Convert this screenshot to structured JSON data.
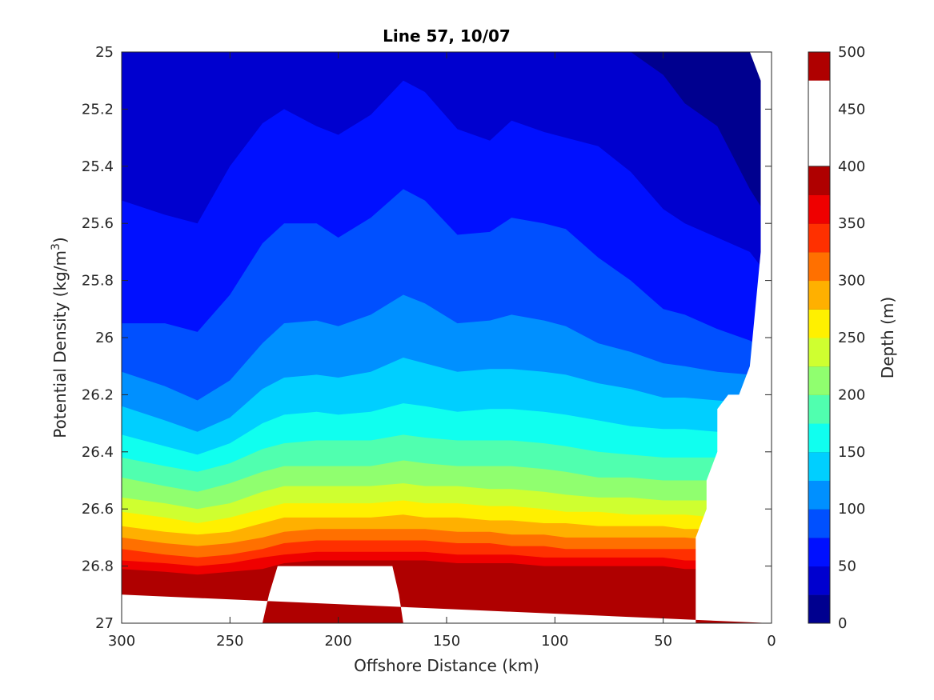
{
  "chart_data": {
    "type": "contour",
    "title": "Line 57, 10/07",
    "xlabel": "Offshore Distance (km)",
    "ylabel_main": "Potential Density (kg/m",
    "ylabel_sup": "3",
    "ylabel_close": ")",
    "colorbar_label": "Depth (m)",
    "xlim": [
      300,
      0
    ],
    "ylim": [
      27,
      25
    ],
    "x_ticks": [
      300,
      250,
      200,
      150,
      100,
      50,
      0
    ],
    "x_tick_labels": [
      "300",
      "250",
      "200",
      "150",
      "100",
      "50",
      "0"
    ],
    "y_ticks": [
      25,
      25.2,
      25.4,
      25.6,
      25.8,
      26,
      26.2,
      26.4,
      26.6,
      26.8,
      27
    ],
    "y_tick_labels": [
      "25",
      "25.2",
      "25.4",
      "25.6",
      "25.8",
      "26",
      "26.2",
      "26.4",
      "26.6",
      "26.8",
      "27"
    ],
    "colorbar_range": [
      0,
      500
    ],
    "colorbar_ticks": [
      0,
      50,
      100,
      150,
      200,
      250,
      300,
      350,
      400,
      450,
      500
    ],
    "colorbar_tick_labels": [
      "0",
      "50",
      "100",
      "150",
      "200",
      "250",
      "300",
      "350",
      "400",
      "450",
      "500"
    ],
    "contour_interval": 25,
    "colormap": [
      "#00008f",
      "#0000cf",
      "#0010ff",
      "#0050ff",
      "#0090ff",
      "#00cfff",
      "#10ffef",
      "#50ffaf",
      "#90ff6f",
      "#cfff30",
      "#fff000",
      "#ffb000",
      "#ff7000",
      "#ff3000",
      "#ef0000",
      "#af0000"
    ],
    "isolines": [
      {
        "depth": 25,
        "x": [
          300,
          280,
          265,
          250,
          235,
          225,
          210,
          200,
          185,
          170,
          160,
          145,
          130,
          120,
          105,
          95,
          80,
          65,
          50,
          40,
          25,
          10,
          0
        ],
        "y": [
          25.0,
          25.0,
          25.0,
          25.0,
          25.0,
          25.0,
          25.0,
          25.0,
          25.0,
          25.0,
          25.0,
          25.0,
          25.0,
          25.0,
          25.0,
          25.0,
          25.0,
          25.0,
          25.08,
          25.18,
          25.26,
          25.48,
          25.6
        ]
      },
      {
        "depth": 50,
        "x": [
          300,
          280,
          265,
          250,
          235,
          225,
          210,
          200,
          185,
          170,
          160,
          145,
          130,
          120,
          105,
          95,
          80,
          65,
          50,
          40,
          25,
          10,
          0
        ],
        "y": [
          25.52,
          25.57,
          25.6,
          25.4,
          25.25,
          25.2,
          25.26,
          25.29,
          25.22,
          25.1,
          25.14,
          25.27,
          25.31,
          25.24,
          25.28,
          25.3,
          25.33,
          25.42,
          25.55,
          25.6,
          25.65,
          25.7,
          25.8
        ]
      },
      {
        "depth": 75,
        "x": [
          300,
          280,
          265,
          250,
          235,
          225,
          210,
          200,
          185,
          170,
          160,
          145,
          130,
          120,
          105,
          95,
          80,
          65,
          50,
          40,
          25,
          10,
          0
        ],
        "y": [
          25.95,
          25.95,
          25.98,
          25.85,
          25.67,
          25.6,
          25.6,
          25.65,
          25.58,
          25.48,
          25.52,
          25.64,
          25.63,
          25.58,
          25.6,
          25.62,
          25.72,
          25.8,
          25.9,
          25.92,
          25.97,
          26.01,
          26.05
        ]
      },
      {
        "depth": 100,
        "x": [
          300,
          280,
          265,
          250,
          235,
          225,
          210,
          200,
          185,
          170,
          160,
          145,
          130,
          120,
          105,
          95,
          80,
          65,
          50,
          40,
          25,
          10,
          0
        ],
        "y": [
          26.12,
          26.17,
          26.22,
          26.15,
          26.02,
          25.95,
          25.94,
          25.96,
          25.92,
          25.85,
          25.88,
          25.95,
          25.94,
          25.92,
          25.94,
          25.96,
          26.02,
          26.05,
          26.09,
          26.1,
          26.12,
          26.13,
          26.14
        ]
      },
      {
        "depth": 125,
        "x": [
          300,
          280,
          265,
          250,
          235,
          225,
          210,
          200,
          185,
          170,
          160,
          145,
          130,
          120,
          105,
          95,
          80,
          65,
          50,
          40,
          25,
          10,
          0
        ],
        "y": [
          26.24,
          26.29,
          26.33,
          26.28,
          26.18,
          26.14,
          26.13,
          26.14,
          26.12,
          26.07,
          26.09,
          26.12,
          26.11,
          26.11,
          26.12,
          26.13,
          26.16,
          26.18,
          26.21,
          26.21,
          26.22,
          26.23,
          26.24
        ]
      },
      {
        "depth": 150,
        "x": [
          300,
          280,
          265,
          250,
          235,
          225,
          210,
          200,
          185,
          170,
          160,
          145,
          130,
          120,
          105,
          95,
          80,
          65,
          50,
          40,
          25,
          10,
          0
        ],
        "y": [
          26.34,
          26.38,
          26.41,
          26.37,
          26.3,
          26.27,
          26.26,
          26.27,
          26.26,
          26.23,
          26.24,
          26.26,
          26.25,
          26.25,
          26.26,
          26.27,
          26.29,
          26.31,
          26.32,
          26.32,
          26.33,
          26.34,
          26.35
        ]
      },
      {
        "depth": 175,
        "x": [
          300,
          280,
          265,
          250,
          235,
          225,
          210,
          200,
          185,
          170,
          160,
          145,
          130,
          120,
          105,
          95,
          80,
          65,
          50,
          40,
          25,
          10,
          0
        ],
        "y": [
          26.42,
          26.45,
          26.47,
          26.44,
          26.39,
          26.37,
          26.36,
          26.36,
          26.36,
          26.34,
          26.35,
          26.36,
          26.36,
          26.36,
          26.37,
          26.38,
          26.4,
          26.41,
          26.42,
          26.42,
          26.42,
          26.43,
          26.44
        ]
      },
      {
        "depth": 200,
        "x": [
          300,
          280,
          265,
          250,
          235,
          225,
          210,
          200,
          185,
          170,
          160,
          145,
          130,
          120,
          105,
          95,
          80,
          65,
          50,
          40,
          25,
          10,
          0
        ],
        "y": [
          26.49,
          26.52,
          26.54,
          26.51,
          26.47,
          26.45,
          26.45,
          26.45,
          26.45,
          26.43,
          26.44,
          26.45,
          26.45,
          26.45,
          26.46,
          26.47,
          26.49,
          26.49,
          26.5,
          26.5,
          26.5,
          26.51,
          26.51
        ]
      },
      {
        "depth": 225,
        "x": [
          300,
          280,
          265,
          250,
          235,
          225,
          210,
          200,
          185,
          170,
          160,
          145,
          130,
          120,
          105,
          95,
          80,
          65,
          50,
          40,
          25,
          10,
          0
        ],
        "y": [
          26.56,
          26.58,
          26.6,
          26.58,
          26.54,
          26.52,
          26.52,
          26.52,
          26.52,
          26.51,
          26.52,
          26.52,
          26.53,
          26.53,
          26.54,
          26.55,
          26.56,
          26.56,
          26.57,
          26.57,
          26.57,
          26.58,
          26.58
        ]
      },
      {
        "depth": 250,
        "x": [
          300,
          280,
          265,
          250,
          235,
          225,
          210,
          200,
          185,
          170,
          160,
          145,
          130,
          120,
          105,
          95,
          80,
          65,
          50,
          40,
          25,
          10,
          0
        ],
        "y": [
          26.61,
          26.63,
          26.65,
          26.63,
          26.6,
          26.58,
          26.58,
          26.58,
          26.58,
          26.57,
          26.58,
          26.58,
          26.59,
          26.59,
          26.6,
          26.61,
          26.61,
          26.62,
          26.62,
          26.62,
          26.63,
          26.63,
          26.63
        ]
      },
      {
        "depth": 275,
        "x": [
          300,
          280,
          265,
          250,
          235,
          225,
          210,
          200,
          185,
          170,
          160,
          145,
          130,
          120,
          105,
          95,
          80,
          65,
          50,
          40,
          25,
          10,
          0
        ],
        "y": [
          26.66,
          26.68,
          26.69,
          26.68,
          26.65,
          26.63,
          26.63,
          26.63,
          26.63,
          26.62,
          26.63,
          26.63,
          26.64,
          26.64,
          26.65,
          26.65,
          26.66,
          26.66,
          26.66,
          26.67,
          26.67,
          26.67,
          26.67
        ]
      },
      {
        "depth": 300,
        "x": [
          300,
          280,
          265,
          250,
          235,
          225,
          210,
          200,
          185,
          170,
          160,
          145,
          130,
          120,
          105,
          95,
          80,
          65,
          50,
          40,
          25,
          10,
          0
        ],
        "y": [
          26.7,
          26.72,
          26.73,
          26.72,
          26.7,
          26.68,
          26.67,
          26.67,
          26.67,
          26.67,
          26.67,
          26.68,
          26.68,
          26.69,
          26.69,
          26.7,
          26.7,
          26.7,
          26.7,
          26.7,
          26.71,
          26.71,
          26.71
        ]
      },
      {
        "depth": 325,
        "x": [
          300,
          280,
          265,
          250,
          235,
          225,
          210,
          200,
          185,
          170,
          160,
          145,
          130,
          120,
          105,
          95,
          80,
          65,
          50,
          40,
          25,
          10,
          0
        ],
        "y": [
          26.74,
          26.76,
          26.77,
          26.76,
          26.74,
          26.72,
          26.71,
          26.71,
          26.71,
          26.71,
          26.71,
          26.72,
          26.72,
          26.73,
          26.73,
          26.74,
          26.74,
          26.74,
          26.74,
          26.74,
          26.74,
          26.75,
          26.75
        ]
      },
      {
        "depth": 350,
        "x": [
          300,
          280,
          265,
          250,
          235,
          225,
          210,
          200,
          185,
          170,
          160,
          145,
          130,
          120,
          105,
          95,
          80,
          65,
          50,
          40,
          25,
          10,
          0
        ],
        "y": [
          26.78,
          26.79,
          26.8,
          26.79,
          26.77,
          26.76,
          26.75,
          26.75,
          26.75,
          26.75,
          26.75,
          26.76,
          26.76,
          26.76,
          26.77,
          26.77,
          26.77,
          26.77,
          26.77,
          26.78,
          26.78,
          26.78,
          26.78
        ]
      },
      {
        "depth": 375,
        "x": [
          300,
          280,
          265,
          250,
          235,
          225,
          210,
          200,
          185,
          170,
          160,
          145,
          130,
          120,
          105,
          95,
          80,
          65,
          50,
          40,
          25,
          10,
          0
        ],
        "y": [
          26.81,
          26.82,
          26.83,
          26.82,
          26.81,
          26.79,
          26.78,
          26.78,
          26.78,
          26.78,
          26.78,
          26.79,
          26.79,
          26.79,
          26.8,
          26.8,
          26.8,
          26.8,
          26.8,
          26.81,
          26.81,
          26.81,
          26.81
        ]
      },
      {
        "depth": 400,
        "x": [
          300,
          280,
          265,
          250,
          235,
          225,
          210,
          200,
          185,
          170,
          160,
          145,
          130,
          120,
          105,
          95,
          80,
          65,
          50,
          40,
          25,
          10,
          0
        ],
        "y": [
          26.84,
          26.85,
          26.86,
          26.85,
          26.83,
          26.82,
          26.82,
          26.81,
          26.81,
          26.81,
          26.82,
          26.82,
          26.82,
          26.82,
          26.83,
          26.83,
          26.83,
          26.83,
          26.83,
          26.84,
          26.84,
          26.84,
          26.84
        ]
      },
      {
        "depth": 425,
        "x": [
          300,
          280,
          265,
          250,
          235,
          225,
          210,
          200,
          185,
          170,
          160,
          145,
          130,
          120,
          105,
          95,
          80,
          65,
          50,
          40,
          25,
          10,
          0
        ],
        "y": [
          26.86,
          26.87,
          26.88,
          26.87,
          26.86,
          26.85,
          26.84,
          26.84,
          26.84,
          26.84,
          26.84,
          26.85,
          26.85,
          26.85,
          26.85,
          26.86,
          26.86,
          26.86,
          26.86,
          26.86,
          26.86,
          26.86,
          26.86
        ]
      },
      {
        "depth": 450,
        "x": [
          300,
          280,
          265,
          250,
          235,
          225,
          210,
          200,
          185,
          170,
          160,
          145,
          130,
          120,
          105,
          95,
          80,
          65,
          50,
          40,
          25,
          10,
          0
        ],
        "y": [
          26.89,
          26.89,
          26.9,
          26.89,
          26.88,
          26.88,
          26.87,
          26.87,
          26.87,
          26.87,
          26.87,
          26.88,
          26.88,
          26.88,
          26.88,
          26.88,
          26.88,
          26.88,
          26.88,
          26.88,
          26.89,
          26.89,
          26.89
        ]
      },
      {
        "depth": 475,
        "x": [
          300,
          280,
          265,
          250,
          235,
          225,
          210,
          200,
          185,
          170,
          160,
          145,
          130,
          120,
          105,
          95,
          80,
          65,
          50,
          40,
          25,
          10,
          0
        ],
        "y": [
          26.9,
          26.9,
          26.9,
          26.9,
          26.9,
          26.9,
          26.9,
          26.9,
          26.9,
          26.9,
          26.89,
          26.89,
          26.89,
          26.89,
          26.9,
          26.9,
          26.9,
          26.9,
          26.9,
          26.9,
          26.9,
          26.9,
          26.9
        ]
      }
    ],
    "no_data_regions": [
      {
        "x": [
          300,
          300,
          235,
          232,
          228,
          175,
          172,
          170,
          35,
          35,
          30,
          30,
          25,
          25,
          20,
          15,
          10,
          5,
          5,
          0,
          0
        ],
        "y": [
          26.9,
          27,
          27,
          26.9,
          26.8,
          26.8,
          26.9,
          27,
          27,
          26.7,
          26.6,
          26.5,
          26.4,
          26.25,
          26.2,
          26.2,
          26.1,
          25.7,
          25.0,
          25.0,
          25.0
        ]
      },
      {
        "x": [
          10,
          0,
          0
        ],
        "y": [
          25.0,
          25.2,
          25.0
        ]
      },
      {
        "x": [
          0,
          0
        ],
        "y": [
          25.6,
          27
        ]
      }
    ],
    "grid": false,
    "colorbar_position": "right"
  }
}
